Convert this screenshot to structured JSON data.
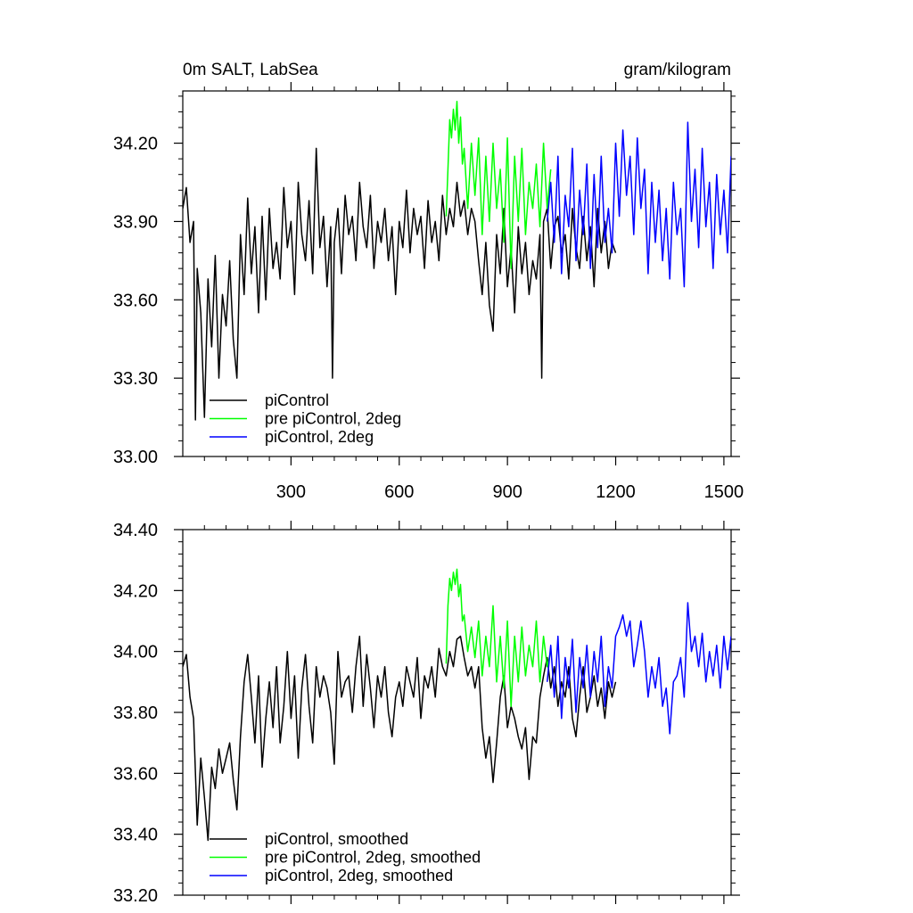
{
  "figure": {
    "top_title_left": "0m SALT, LabSea",
    "top_title_right": "gram/kilogram"
  },
  "colors": {
    "piControl": "#000000",
    "pre_piControl_2deg": "#00ff00",
    "piControl_2deg": "#0000ff"
  },
  "chart_data": [
    {
      "type": "line",
      "title": "0m SALT, LabSea",
      "units": "gram/kilogram",
      "xlabel": "",
      "ylabel": "",
      "xlim": [
        0,
        1520
      ],
      "ylim": [
        33.0,
        34.4
      ],
      "x_ticks": [
        300,
        600,
        900,
        1200,
        1500
      ],
      "x_tick_labels": [
        "300",
        "600",
        "900",
        "1200",
        "1500"
      ],
      "y_ticks": [
        33.0,
        33.3,
        33.6,
        33.9,
        34.2
      ],
      "y_tick_labels": [
        "33.00",
        "33.30",
        "33.60",
        "33.90",
        "34.20"
      ],
      "legend_location": "bottom-left",
      "series": [
        {
          "name": "piControl",
          "color": "#000000",
          "x": [
            0,
            10,
            20,
            30,
            35,
            40,
            50,
            60,
            70,
            80,
            90,
            100,
            110,
            120,
            130,
            140,
            150,
            160,
            170,
            180,
            190,
            200,
            210,
            220,
            230,
            240,
            250,
            260,
            270,
            280,
            290,
            300,
            310,
            320,
            330,
            340,
            350,
            360,
            370,
            380,
            390,
            400,
            410,
            415,
            420,
            430,
            440,
            450,
            460,
            470,
            480,
            490,
            500,
            510,
            520,
            530,
            540,
            550,
            560,
            570,
            580,
            590,
            600,
            610,
            620,
            630,
            640,
            650,
            660,
            670,
            680,
            690,
            700,
            710,
            720,
            730,
            740,
            750,
            760,
            770,
            780,
            790,
            800,
            810,
            820,
            830,
            840,
            850,
            860,
            870,
            880,
            890,
            900,
            910,
            920,
            930,
            940,
            950,
            960,
            970,
            980,
            990,
            995,
            1000,
            1010,
            1020,
            1030,
            1040,
            1050,
            1060,
            1070,
            1080,
            1090,
            1100,
            1110,
            1120,
            1130,
            1140,
            1150,
            1160,
            1170,
            1180,
            1190,
            1200
          ],
          "values": [
            33.95,
            34.03,
            33.82,
            33.9,
            33.14,
            33.72,
            33.55,
            33.15,
            33.68,
            33.42,
            33.77,
            33.3,
            33.62,
            33.5,
            33.75,
            33.45,
            33.3,
            33.85,
            33.62,
            33.99,
            33.7,
            33.88,
            33.55,
            33.92,
            33.6,
            33.95,
            33.72,
            33.82,
            33.68,
            34.03,
            33.8,
            33.9,
            33.62,
            34.05,
            33.85,
            33.75,
            33.98,
            33.7,
            34.18,
            33.8,
            33.92,
            33.65,
            33.88,
            33.3,
            33.82,
            33.95,
            33.7,
            34.0,
            33.85,
            33.92,
            33.75,
            34.05,
            33.88,
            33.8,
            34.0,
            33.72,
            33.9,
            33.82,
            33.95,
            33.75,
            33.88,
            33.62,
            33.9,
            33.8,
            34.02,
            33.78,
            33.95,
            33.85,
            33.92,
            33.72,
            33.98,
            33.82,
            33.9,
            33.75,
            34.0,
            33.85,
            33.95,
            33.88,
            34.05,
            33.92,
            33.98,
            33.85,
            33.95,
            33.9,
            33.75,
            33.62,
            33.82,
            33.58,
            33.48,
            33.85,
            33.7,
            33.95,
            33.65,
            33.8,
            33.55,
            33.88,
            33.7,
            33.82,
            33.62,
            33.75,
            33.68,
            33.85,
            33.3,
            33.9,
            33.95,
            33.72,
            33.88,
            33.92,
            33.78,
            33.85,
            33.68,
            33.95,
            33.8,
            33.72,
            33.92,
            33.75,
            33.88,
            33.65,
            33.95,
            33.78,
            33.9,
            33.72,
            33.82,
            33.78
          ]
        },
        {
          "name": "pre piControl, 2deg",
          "color": "#00ff00",
          "x": [
            730,
            735,
            740,
            745,
            750,
            755,
            760,
            765,
            770,
            775,
            780,
            790,
            800,
            810,
            820,
            830,
            840,
            850,
            860,
            870,
            880,
            890,
            900,
            910,
            920,
            930,
            940,
            950,
            960,
            970,
            980,
            990,
            1000,
            1010,
            1020
          ],
          "values": [
            33.92,
            34.1,
            34.29,
            34.22,
            34.33,
            34.25,
            34.36,
            34.2,
            34.3,
            34.12,
            34.18,
            33.95,
            34.2,
            34.0,
            34.22,
            33.85,
            34.15,
            33.9,
            34.2,
            33.95,
            34.1,
            33.82,
            34.22,
            33.72,
            34.15,
            33.9,
            34.18,
            33.85,
            34.05,
            33.95,
            34.12,
            33.88,
            34.2,
            33.95,
            34.1
          ]
        },
        {
          "name": "piControl, 2deg",
          "color": "#0000ff",
          "x": [
            1010,
            1020,
            1030,
            1040,
            1050,
            1060,
            1070,
            1080,
            1090,
            1100,
            1110,
            1120,
            1130,
            1140,
            1150,
            1160,
            1170,
            1180,
            1190,
            1200,
            1210,
            1220,
            1230,
            1240,
            1250,
            1260,
            1270,
            1280,
            1290,
            1300,
            1310,
            1320,
            1330,
            1340,
            1350,
            1360,
            1370,
            1380,
            1390,
            1400,
            1410,
            1420,
            1430,
            1440,
            1450,
            1460,
            1470,
            1480,
            1490,
            1500,
            1510,
            1520
          ],
          "values": [
            33.9,
            34.05,
            33.82,
            34.15,
            33.7,
            34.0,
            33.88,
            34.18,
            33.75,
            34.02,
            33.85,
            34.12,
            33.72,
            34.08,
            33.8,
            34.15,
            33.82,
            33.95,
            33.78,
            34.2,
            33.92,
            34.25,
            34.0,
            34.15,
            33.85,
            34.22,
            33.95,
            34.1,
            33.7,
            34.05,
            33.82,
            34.02,
            33.75,
            33.95,
            33.68,
            34.05,
            33.85,
            33.95,
            33.65,
            34.28,
            33.9,
            34.1,
            33.8,
            34.18,
            33.88,
            34.05,
            33.72,
            34.08,
            33.85,
            34.02,
            33.78,
            34.15
          ]
        }
      ]
    },
    {
      "type": "line",
      "title": "",
      "xlabel": "",
      "ylabel": "",
      "xlim": [
        0,
        1520
      ],
      "ylim": [
        33.2,
        34.4
      ],
      "x_ticks": [
        300,
        600,
        900,
        1200,
        1500
      ],
      "y_ticks": [
        33.2,
        33.4,
        33.6,
        33.8,
        34.0,
        34.2,
        34.4
      ],
      "y_tick_labels": [
        "33.20",
        "33.40",
        "33.60",
        "33.80",
        "34.00",
        "34.20",
        "34.40"
      ],
      "legend_location": "bottom-left",
      "series": [
        {
          "name": "piControl, smoothed",
          "color": "#000000",
          "x": [
            0,
            10,
            20,
            30,
            40,
            50,
            60,
            70,
            80,
            90,
            100,
            110,
            120,
            130,
            140,
            150,
            160,
            170,
            180,
            190,
            200,
            210,
            220,
            230,
            240,
            250,
            260,
            270,
            280,
            290,
            300,
            310,
            320,
            330,
            340,
            350,
            360,
            370,
            380,
            390,
            400,
            410,
            420,
            430,
            440,
            450,
            460,
            470,
            480,
            490,
            500,
            510,
            520,
            530,
            540,
            550,
            560,
            570,
            580,
            590,
            600,
            610,
            620,
            630,
            640,
            650,
            660,
            670,
            680,
            690,
            700,
            710,
            720,
            730,
            740,
            750,
            760,
            770,
            780,
            790,
            800,
            810,
            820,
            830,
            840,
            850,
            860,
            870,
            880,
            890,
            900,
            910,
            920,
            930,
            940,
            950,
            960,
            970,
            980,
            990,
            1000,
            1010,
            1020,
            1030,
            1040,
            1050,
            1060,
            1070,
            1080,
            1090,
            1100,
            1110,
            1120,
            1130,
            1140,
            1150,
            1160,
            1170,
            1180,
            1190,
            1200
          ],
          "values": [
            33.95,
            33.99,
            33.85,
            33.78,
            33.43,
            33.65,
            33.52,
            33.38,
            33.62,
            33.55,
            33.68,
            33.6,
            33.65,
            33.7,
            33.58,
            33.48,
            33.72,
            33.9,
            33.99,
            33.85,
            33.7,
            33.92,
            33.62,
            33.78,
            33.9,
            33.75,
            33.95,
            33.7,
            33.82,
            34.0,
            33.78,
            33.92,
            33.65,
            33.88,
            33.99,
            33.82,
            33.7,
            33.95,
            33.85,
            33.92,
            33.88,
            33.8,
            33.63,
            34.0,
            33.85,
            33.9,
            33.92,
            33.8,
            33.95,
            34.05,
            33.82,
            33.99,
            33.88,
            33.75,
            33.92,
            33.85,
            33.95,
            33.8,
            33.72,
            33.85,
            33.9,
            33.82,
            33.95,
            33.9,
            33.85,
            33.98,
            33.78,
            33.92,
            33.88,
            33.95,
            33.85,
            34.01,
            33.95,
            33.92,
            34.0,
            33.95,
            34.04,
            34.05,
            33.98,
            33.92,
            33.95,
            33.88,
            33.95,
            33.75,
            33.65,
            33.72,
            33.57,
            33.7,
            33.85,
            33.92,
            33.75,
            33.82,
            33.78,
            33.72,
            33.68,
            33.75,
            33.58,
            33.72,
            33.7,
            33.85,
            33.92,
            33.98,
            33.88,
            33.95,
            33.82,
            33.9,
            33.85,
            33.95,
            33.78,
            33.72,
            33.85,
            33.95,
            33.8,
            33.85,
            33.92,
            33.82,
            33.88,
            33.78,
            33.9,
            33.85,
            33.9
          ]
        },
        {
          "name": "pre piControl, 2deg, smoothed",
          "color": "#00ff00",
          "x": [
            730,
            735,
            740,
            745,
            750,
            755,
            760,
            765,
            770,
            775,
            780,
            790,
            800,
            810,
            820,
            830,
            840,
            850,
            860,
            870,
            880,
            890,
            900,
            910,
            920,
            930,
            940,
            950,
            960,
            970,
            980,
            990,
            1000,
            1010,
            1020
          ],
          "values": [
            33.96,
            34.15,
            34.24,
            34.2,
            34.26,
            34.22,
            34.27,
            34.18,
            34.22,
            34.1,
            34.12,
            34.0,
            34.08,
            33.98,
            34.1,
            33.92,
            34.05,
            33.95,
            34.15,
            33.9,
            34.05,
            33.88,
            34.1,
            33.82,
            34.05,
            33.9,
            34.08,
            33.92,
            34.02,
            33.95,
            34.1,
            33.9,
            34.05,
            33.95,
            34.0
          ]
        },
        {
          "name": "piControl, 2deg, smoothed",
          "color": "#0000ff",
          "x": [
            1010,
            1020,
            1030,
            1040,
            1050,
            1060,
            1070,
            1080,
            1090,
            1100,
            1110,
            1120,
            1130,
            1140,
            1150,
            1160,
            1170,
            1180,
            1190,
            1200,
            1210,
            1220,
            1230,
            1240,
            1250,
            1260,
            1270,
            1280,
            1290,
            1300,
            1310,
            1320,
            1330,
            1340,
            1350,
            1360,
            1370,
            1380,
            1390,
            1400,
            1410,
            1420,
            1430,
            1440,
            1450,
            1460,
            1470,
            1480,
            1490,
            1500,
            1510,
            1520
          ],
          "values": [
            33.9,
            34.02,
            33.85,
            34.05,
            33.78,
            33.98,
            33.88,
            34.04,
            33.8,
            33.98,
            33.88,
            34.02,
            33.85,
            34.0,
            33.9,
            34.05,
            33.82,
            33.95,
            33.88,
            34.05,
            34.08,
            34.12,
            34.05,
            34.1,
            33.95,
            34.02,
            34.1,
            34.0,
            33.85,
            33.95,
            33.88,
            33.98,
            33.82,
            33.88,
            33.73,
            33.9,
            33.92,
            33.98,
            33.85,
            34.16,
            34.0,
            34.05,
            33.95,
            34.06,
            33.9,
            34.0,
            33.92,
            34.02,
            33.88,
            34.05,
            33.94,
            34.05
          ]
        }
      ]
    }
  ]
}
